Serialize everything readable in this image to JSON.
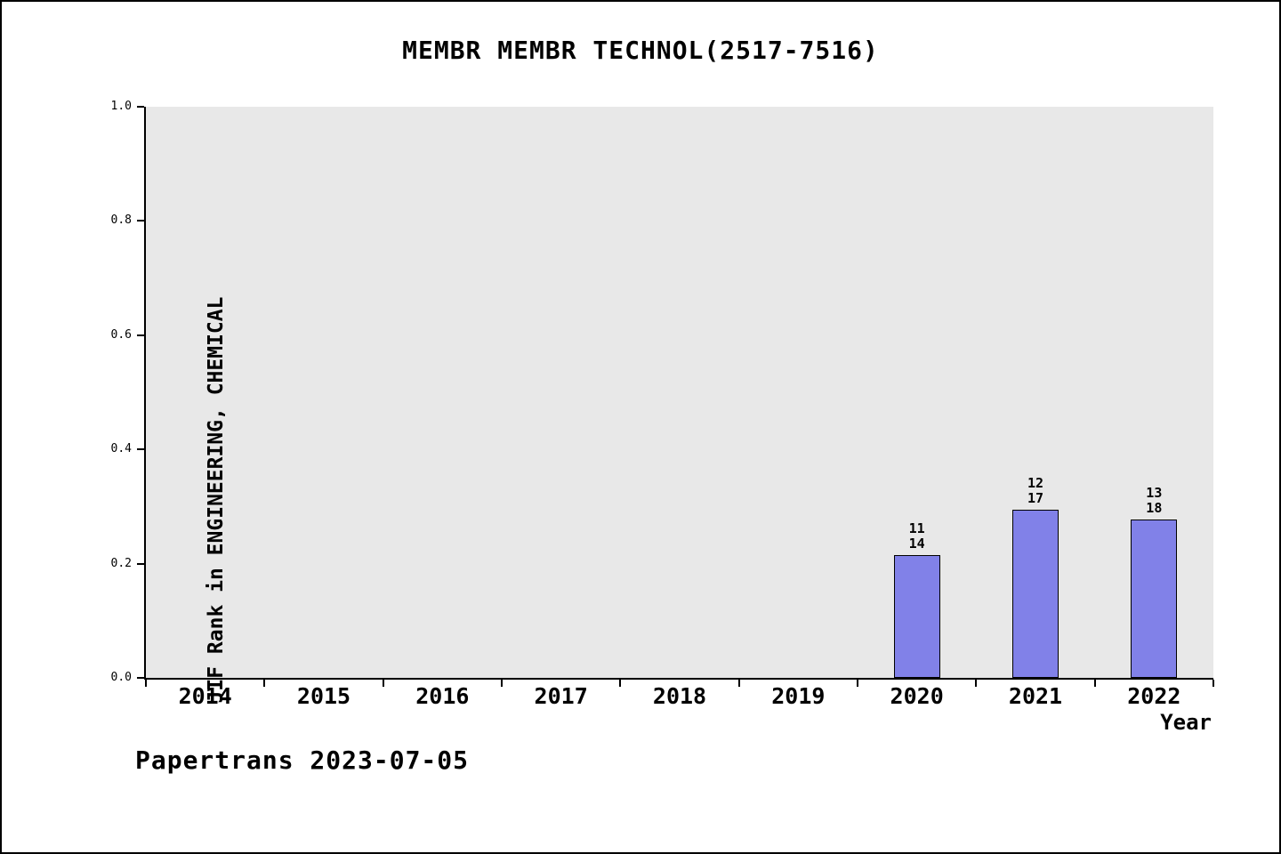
{
  "chart_data": {
    "type": "bar",
    "title": "MEMBR MEMBR TECHNOL(2517-7516)",
    "xlabel": "Year",
    "ylabel": "JIF Rank in ENGINEERING, CHEMICAL",
    "ylim": [
      0.0,
      1.0
    ],
    "yticks": [
      0.0,
      0.2,
      0.4,
      0.6,
      0.8,
      1.0
    ],
    "categories": [
      "2014",
      "2015",
      "2016",
      "2017",
      "2018",
      "2019",
      "2020",
      "2021",
      "2022"
    ],
    "bars": [
      {
        "category": "2020",
        "value": 0.2143,
        "label_lines": [
          "11",
          "14"
        ]
      },
      {
        "category": "2021",
        "value": 0.2941,
        "label_lines": [
          "12",
          "17"
        ]
      },
      {
        "category": "2022",
        "value": 0.2778,
        "label_lines": [
          "13",
          "18"
        ]
      }
    ],
    "bar_color": "#8181e8",
    "plot_bg": "#e8e8e8",
    "legend": "none",
    "grid": false
  },
  "footer": {
    "text": "Papertrans 2023-07-05"
  }
}
